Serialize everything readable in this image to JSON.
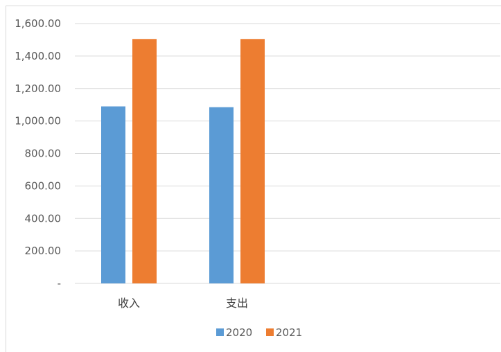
{
  "chart_data": {
    "type": "bar",
    "title": "",
    "xlabel": "",
    "ylabel": "",
    "categories": [
      "收入",
      "支出"
    ],
    "series": [
      {
        "name": "2020",
        "values": [
          1090,
          1085
        ],
        "color": "#5b9bd5"
      },
      {
        "name": "2021",
        "values": [
          1505,
          1505
        ],
        "color": "#ed7d31"
      }
    ],
    "ylim": [
      0,
      1600
    ],
    "yticks": [
      0,
      200,
      400,
      600,
      800,
      1000,
      1200,
      1400,
      1600
    ],
    "ytick_labels": [
      "-",
      "200.00",
      "400.00",
      "600.00",
      "800.00",
      "1,000.00",
      "1,200.00",
      "1,400.00",
      "1,600.00"
    ],
    "grid": true,
    "legend_position": "bottom"
  }
}
